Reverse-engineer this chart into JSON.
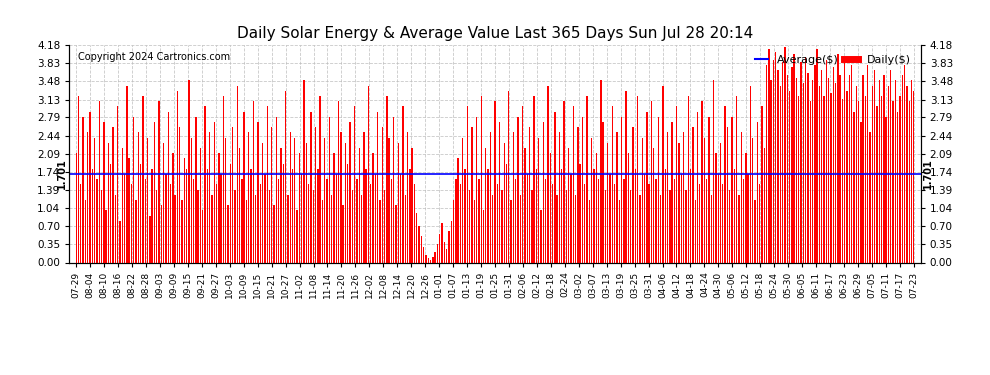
{
  "title": "Daily Solar Energy & Average Value Last 365 Days Sun Jul 28 20:14",
  "copyright": "Copyright 2024 Cartronics.com",
  "legend_average": "Average($)",
  "legend_daily": "Daily($)",
  "average_value": 1.701,
  "average_label": "1.701",
  "bar_color": "#FF0000",
  "average_color": "#0000FF",
  "background_color": "#FFFFFF",
  "grid_color": "#BBBBBB",
  "yticks": [
    0.0,
    0.35,
    0.7,
    1.04,
    1.39,
    1.74,
    2.09,
    2.44,
    2.79,
    3.13,
    3.48,
    3.83,
    4.18
  ],
  "ymax": 4.18,
  "ymin": 0.0,
  "xtick_labels": [
    "07-29",
    "08-04",
    "08-10",
    "08-16",
    "08-22",
    "08-28",
    "09-03",
    "09-09",
    "09-15",
    "09-21",
    "09-27",
    "10-03",
    "10-09",
    "10-15",
    "10-21",
    "10-27",
    "11-02",
    "11-08",
    "11-14",
    "11-20",
    "11-26",
    "12-02",
    "12-08",
    "12-14",
    "12-20",
    "12-26",
    "01-01",
    "01-07",
    "01-13",
    "01-19",
    "01-25",
    "01-31",
    "02-06",
    "02-12",
    "02-18",
    "02-24",
    "03-02",
    "03-07",
    "03-13",
    "03-19",
    "03-25",
    "03-31",
    "04-06",
    "04-12",
    "04-18",
    "04-24",
    "04-30",
    "05-06",
    "05-12",
    "05-18",
    "05-24",
    "05-30",
    "06-05",
    "06-11",
    "06-17",
    "06-23",
    "06-29",
    "07-05",
    "07-11",
    "07-17",
    "07-23"
  ],
  "daily_values": [
    2.1,
    3.2,
    1.5,
    2.8,
    1.2,
    2.5,
    2.9,
    1.8,
    2.4,
    1.6,
    3.1,
    1.4,
    2.7,
    1.0,
    2.3,
    1.9,
    2.6,
    1.3,
    3.0,
    0.8,
    2.2,
    1.7,
    3.4,
    2.0,
    1.5,
    2.8,
    1.2,
    2.5,
    1.9,
    3.2,
    1.6,
    2.4,
    0.9,
    1.8,
    2.7,
    1.4,
    3.1,
    1.1,
    2.3,
    1.7,
    2.9,
    1.5,
    2.1,
    1.3,
    3.3,
    2.6,
    1.2,
    2.0,
    1.8,
    3.5,
    2.4,
    1.6,
    2.8,
    1.4,
    2.2,
    1.0,
    3.0,
    1.8,
    2.5,
    1.3,
    2.7,
    1.5,
    2.1,
    1.7,
    3.2,
    2.4,
    1.1,
    1.9,
    2.6,
    1.4,
    3.4,
    2.2,
    1.6,
    2.9,
    1.2,
    2.5,
    1.8,
    3.1,
    1.3,
    2.7,
    1.5,
    2.3,
    1.7,
    3.0,
    1.4,
    2.6,
    1.1,
    2.8,
    1.6,
    2.2,
    1.9,
    3.3,
    1.3,
    2.5,
    1.8,
    2.4,
    1.0,
    2.1,
    1.7,
    3.5,
    2.3,
    1.5,
    2.9,
    1.4,
    2.6,
    1.8,
    3.2,
    1.2,
    2.4,
    1.6,
    2.8,
    1.3,
    2.1,
    1.7,
    3.1,
    2.5,
    1.1,
    2.3,
    1.9,
    2.7,
    1.4,
    3.0,
    1.6,
    2.2,
    1.3,
    2.5,
    1.8,
    3.4,
    1.5,
    2.1,
    1.7,
    2.9,
    1.2,
    2.6,
    1.4,
    3.2,
    2.4,
    1.6,
    2.8,
    1.1,
    2.3,
    1.7,
    3.0,
    1.3,
    2.5,
    1.8,
    2.2,
    1.5,
    0.95,
    0.7,
    0.5,
    0.3,
    0.15,
    0.08,
    0.05,
    0.1,
    0.2,
    0.35,
    0.55,
    0.75,
    0.4,
    0.25,
    0.6,
    0.8,
    1.2,
    1.6,
    2.0,
    1.5,
    2.4,
    1.8,
    3.0,
    1.4,
    2.6,
    1.2,
    2.8,
    1.6,
    3.2,
    1.0,
    2.2,
    1.8,
    2.5,
    1.3,
    3.1,
    1.5,
    2.7,
    1.4,
    2.3,
    1.9,
    3.3,
    1.2,
    2.5,
    1.6,
    2.8,
    1.3,
    3.0,
    2.2,
    1.7,
    2.6,
    1.4,
    3.2,
    1.8,
    2.4,
    1.0,
    2.7,
    1.6,
    3.4,
    2.1,
    1.5,
    2.9,
    1.3,
    2.5,
    1.8,
    3.1,
    1.4,
    2.2,
    1.7,
    3.0,
    1.3,
    2.6,
    1.9,
    2.8,
    1.5,
    3.2,
    1.2,
    2.4,
    1.8,
    2.1,
    1.6,
    3.5,
    2.7,
    1.4,
    2.3,
    1.7,
    3.0,
    1.5,
    2.5,
    1.2,
    2.8,
    1.6,
    3.3,
    2.1,
    1.4,
    2.6,
    1.8,
    3.2,
    1.3,
    2.4,
    1.7,
    2.9,
    1.5,
    3.1,
    2.2,
    1.6,
    2.8,
    1.3,
    3.4,
    1.8,
    2.5,
    1.4,
    2.7,
    1.6,
    3.0,
    2.3,
    1.7,
    2.5,
    1.4,
    3.2,
    1.8,
    2.6,
    1.2,
    2.9,
    1.5,
    3.1,
    2.4,
    1.6,
    2.8,
    1.3,
    3.5,
    2.1,
    1.7,
    2.3,
    1.5,
    3.0,
    2.6,
    1.4,
    2.8,
    1.8,
    3.2,
    1.3,
    2.5,
    1.6,
    2.1,
    1.7,
    3.4,
    2.4,
    1.2,
    2.7,
    1.5,
    3.0,
    2.2,
    3.8,
    4.1,
    3.5,
    3.9,
    4.05,
    3.7,
    3.4,
    3.85,
    4.15,
    3.6,
    3.3,
    3.75,
    4.0,
    3.55,
    3.2,
    3.85,
    3.45,
    3.95,
    3.65,
    3.1,
    3.5,
    3.8,
    4.1,
    3.4,
    3.7,
    3.2,
    3.9,
    3.55,
    3.25,
    3.75,
    3.45,
    4.0,
    3.6,
    3.15,
    3.85,
    3.3,
    3.6,
    3.8,
    2.9,
    3.4,
    3.1,
    2.7,
    3.6,
    3.2,
    3.8,
    2.5,
    3.4,
    3.7,
    3.0,
    3.5,
    3.2,
    3.6,
    2.8,
    3.4,
    3.7,
    3.1,
    3.5,
    2.9,
    3.2,
    3.6,
    3.8,
    3.4,
    3.1,
    3.5,
    3.3
  ]
}
